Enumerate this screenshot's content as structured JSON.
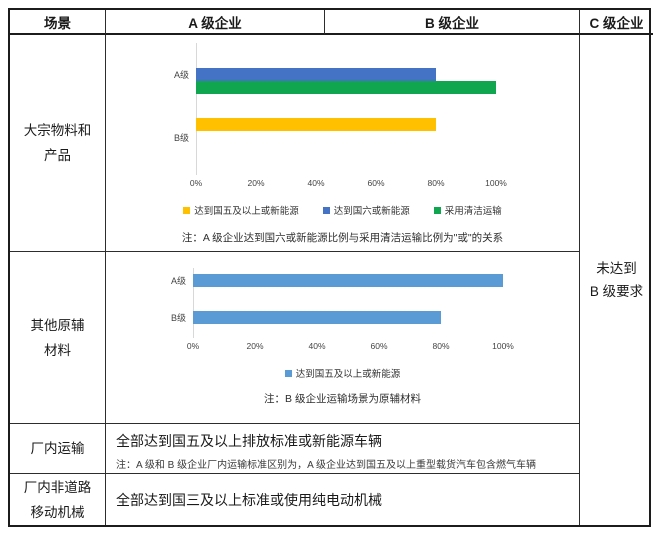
{
  "header": {
    "columns": [
      "场景",
      "A 级企业",
      "B 级企业",
      "C 级企业"
    ]
  },
  "rows": {
    "bulk": {
      "label_line1": "大宗物料和",
      "label_line2": "产品"
    },
    "other": {
      "label_line1": "其他原辅",
      "label_line2": "材料"
    },
    "transport": {
      "label": "厂内运输",
      "text": "全部达到国五及以上排放标准或新能源车辆",
      "note": "注：A 级和 B 级企业厂内运输标准区别为，A 级企业达到国五及以上重型载货汽车包含燃气车辆"
    },
    "machinery": {
      "label_line1": "厂内非道路",
      "label_line2": "移动机械",
      "text": "全部达到国三及以上标准或使用纯电动机械"
    }
  },
  "c_column": {
    "line1": "未达到",
    "line2": "B 级要求"
  },
  "colors": {
    "national5_yellow": "#FFC000",
    "national6_blue": "#4472C4",
    "clean_transport_green": "#10A64F",
    "national5_lightblue": "#5B9BD5"
  },
  "chart_data": [
    {
      "type": "bar",
      "orientation": "horizontal",
      "title": "",
      "categories": [
        "A级",
        "B级"
      ],
      "series": [
        {
          "name": "达到国五及以上或新能源",
          "color": "#FFC000",
          "values": [
            null,
            80
          ]
        },
        {
          "name": "达到国六或新能源",
          "color": "#4472C4",
          "values": [
            80,
            null
          ]
        },
        {
          "name": "采用清洁运输",
          "color": "#10A64F",
          "values": [
            100,
            null
          ]
        }
      ],
      "x_ticks": [
        "0%",
        "20%",
        "40%",
        "60%",
        "80%",
        "100%"
      ],
      "xlim": [
        0,
        100
      ],
      "grid": false,
      "legend_position": "bottom",
      "note": "注：A 级企业达到国六或新能源比例与采用清洁运输比例为\"或\"的关系"
    },
    {
      "type": "bar",
      "orientation": "horizontal",
      "title": "",
      "categories": [
        "A级",
        "B级"
      ],
      "series": [
        {
          "name": "达到国五及以上或新能源",
          "color": "#5B9BD5",
          "values": [
            100,
            80
          ]
        }
      ],
      "x_ticks": [
        "0%",
        "20%",
        "40%",
        "60%",
        "80%",
        "100%"
      ],
      "xlim": [
        0,
        100
      ],
      "grid": false,
      "legend_position": "bottom",
      "note": "注：B 级企业运输场景为原辅材料"
    }
  ]
}
